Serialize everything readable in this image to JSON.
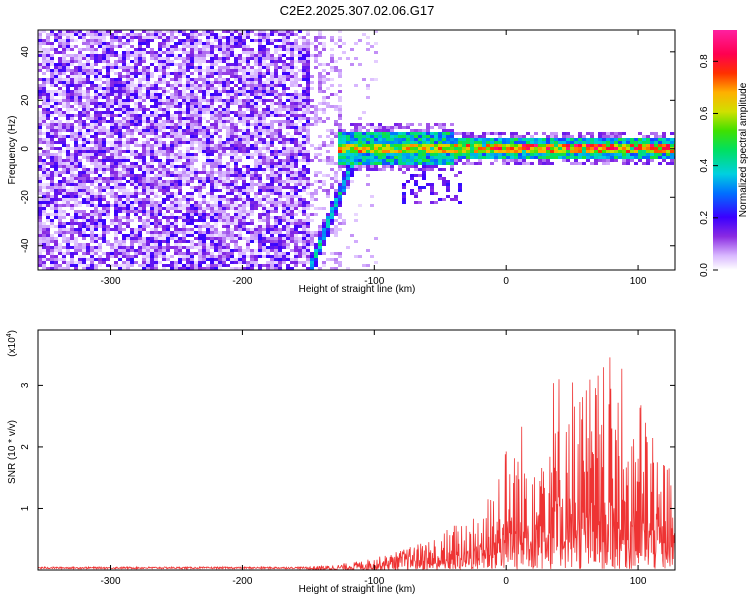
{
  "title": "C2E2.2025.307.02.06.G17",
  "chart_data": [
    {
      "type": "heatmap",
      "xlabel": "Height of straight line (km)",
      "ylabel": "Frequency (Hz)",
      "xlim": [
        -355,
        128
      ],
      "ylim": [
        -50,
        49
      ],
      "xticks": [
        -300,
        -200,
        -100,
        0,
        100
      ],
      "yticks": [
        -40,
        -20,
        0,
        20,
        40
      ],
      "colorbar": {
        "label": "Normalized spectral amplitude",
        "range": [
          0,
          0.92
        ],
        "ticks": [
          0.0,
          0.2,
          0.4,
          0.6,
          0.8
        ]
      }
    },
    {
      "type": "line",
      "xlabel": "Height of straight line (km)",
      "ylabel": "SNR (10 * v/v)",
      "yscale_label": "(x10",
      "yscale_exp": "4",
      "xlim": [
        -355,
        128
      ],
      "ylim": [
        0,
        3.9
      ],
      "xticks": [
        -300,
        -200,
        -100,
        0,
        100
      ],
      "yticks": [
        1,
        2,
        3
      ],
      "series_color": "#ee3333",
      "envelope": {
        "x": [
          -355,
          -160,
          -130,
          -110,
          -90,
          -70,
          -50,
          -30,
          -15,
          0,
          20,
          40,
          60,
          80,
          100,
          110,
          120,
          128
        ],
        "y": [
          0.03,
          0.05,
          0.08,
          0.15,
          0.25,
          0.4,
          0.6,
          0.9,
          1.4,
          2.1,
          2.7,
          3.4,
          3.2,
          3.5,
          2.9,
          2.6,
          2.0,
          1.6
        ]
      }
    }
  ]
}
